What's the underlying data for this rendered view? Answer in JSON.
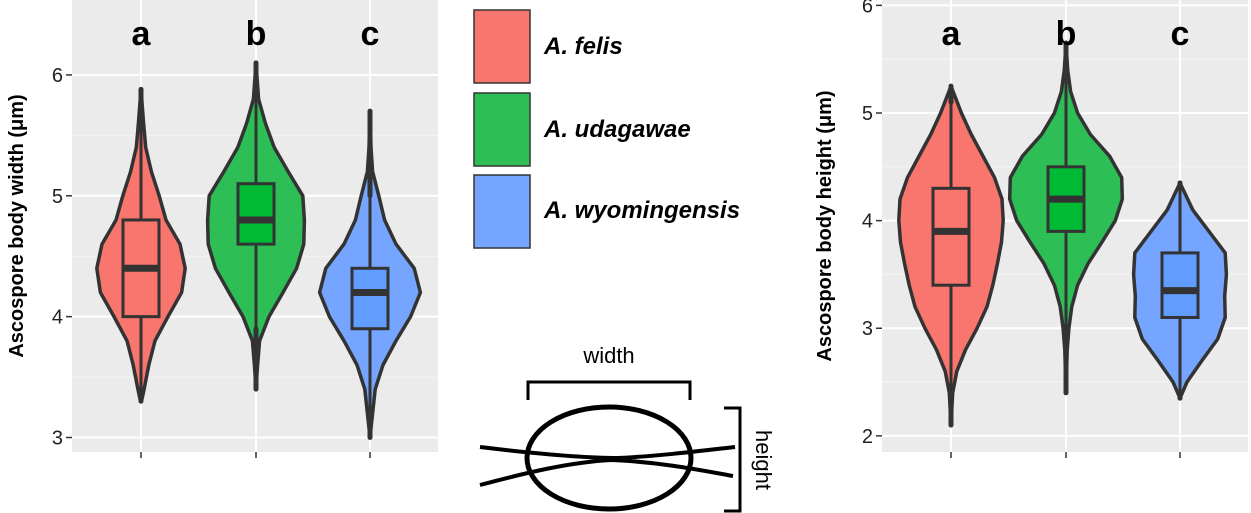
{
  "chart_data": [
    {
      "type": "violin",
      "ylabel": "Ascospore body width (μm)",
      "yticks": [
        3,
        4,
        5,
        6
      ],
      "ylim": [
        2.88,
        6.62
      ],
      "grid": true,
      "categories": [
        "A. felis",
        "A. udagawae",
        "A. wyomingensis"
      ],
      "significance_letters": [
        "a",
        "b",
        "c"
      ],
      "series": [
        {
          "name": "A. felis",
          "min": 3.3,
          "q1": 4.0,
          "median": 4.4,
          "q3": 4.8,
          "max": 5.88,
          "whisker_low": 3.3,
          "whisker_high": 5.8,
          "violin_profile": [
            [
              3.3,
              0.01
            ],
            [
              3.4,
              0.06
            ],
            [
              3.6,
              0.15
            ],
            [
              3.8,
              0.27
            ],
            [
              4.0,
              0.52
            ],
            [
              4.2,
              0.78
            ],
            [
              4.4,
              0.85
            ],
            [
              4.6,
              0.75
            ],
            [
              4.8,
              0.48
            ],
            [
              5.0,
              0.35
            ],
            [
              5.2,
              0.2
            ],
            [
              5.4,
              0.09
            ],
            [
              5.6,
              0.05
            ],
            [
              5.88,
              0.0
            ]
          ]
        },
        {
          "name": "A. udagawae",
          "min": 3.4,
          "q1": 4.6,
          "median": 4.8,
          "q3": 5.1,
          "max": 6.1,
          "whisker_low": 3.9,
          "whisker_high": 5.8,
          "violin_profile": [
            [
              3.4,
              0.0
            ],
            [
              3.6,
              0.03
            ],
            [
              3.8,
              0.07
            ],
            [
              4.0,
              0.25
            ],
            [
              4.2,
              0.52
            ],
            [
              4.4,
              0.78
            ],
            [
              4.6,
              0.92
            ],
            [
              4.8,
              0.93
            ],
            [
              5.0,
              0.9
            ],
            [
              5.2,
              0.62
            ],
            [
              5.4,
              0.35
            ],
            [
              5.6,
              0.18
            ],
            [
              5.8,
              0.05
            ],
            [
              6.1,
              0.0
            ]
          ]
        },
        {
          "name": "A. wyomingensis",
          "min": 3.0,
          "q1": 3.9,
          "median": 4.2,
          "q3": 4.4,
          "max": 5.7,
          "whisker_low": 3.2,
          "whisker_high": 5.0,
          "violin_profile": [
            [
              3.0,
              0.0
            ],
            [
              3.2,
              0.05
            ],
            [
              3.4,
              0.1
            ],
            [
              3.6,
              0.25
            ],
            [
              3.8,
              0.5
            ],
            [
              4.0,
              0.78
            ],
            [
              4.2,
              0.97
            ],
            [
              4.4,
              0.85
            ],
            [
              4.6,
              0.5
            ],
            [
              4.8,
              0.28
            ],
            [
              5.0,
              0.17
            ],
            [
              5.2,
              0.05
            ],
            [
              5.4,
              0.02
            ],
            [
              5.7,
              0.0
            ]
          ]
        }
      ]
    },
    {
      "type": "violin",
      "ylabel": "Ascospore body height (μm)",
      "yticks": [
        2,
        3,
        4,
        5,
        6
      ],
      "ylim": [
        1.85,
        6.05
      ],
      "grid": true,
      "categories": [
        "A. felis",
        "A. udagawae",
        "A. wyomingensis"
      ],
      "significance_letters": [
        "a",
        "b",
        "c"
      ],
      "series": [
        {
          "name": "A. felis",
          "min": 2.1,
          "q1": 3.4,
          "median": 3.9,
          "q3": 4.3,
          "max": 5.25,
          "whisker_low": 2.3,
          "whisker_high": 5.1,
          "violin_profile": [
            [
              2.1,
              0.0
            ],
            [
              2.4,
              0.03
            ],
            [
              2.6,
              0.1
            ],
            [
              2.8,
              0.25
            ],
            [
              3.0,
              0.45
            ],
            [
              3.2,
              0.62
            ],
            [
              3.4,
              0.72
            ],
            [
              3.6,
              0.8
            ],
            [
              3.8,
              0.87
            ],
            [
              4.0,
              0.9
            ],
            [
              4.2,
              0.88
            ],
            [
              4.4,
              0.75
            ],
            [
              4.6,
              0.55
            ],
            [
              4.8,
              0.35
            ],
            [
              5.0,
              0.18
            ],
            [
              5.25,
              0.0
            ]
          ]
        },
        {
          "name": "A. udagawae",
          "min": 2.4,
          "q1": 3.9,
          "median": 4.2,
          "q3": 4.5,
          "max": 5.65,
          "whisker_low": 3.0,
          "whisker_high": 5.4,
          "violin_profile": [
            [
              2.4,
              0.0
            ],
            [
              2.8,
              0.02
            ],
            [
              3.0,
              0.05
            ],
            [
              3.2,
              0.1
            ],
            [
              3.4,
              0.2
            ],
            [
              3.6,
              0.38
            ],
            [
              3.8,
              0.62
            ],
            [
              4.0,
              0.85
            ],
            [
              4.2,
              0.97
            ],
            [
              4.4,
              0.96
            ],
            [
              4.6,
              0.75
            ],
            [
              4.8,
              0.42
            ],
            [
              5.0,
              0.2
            ],
            [
              5.2,
              0.08
            ],
            [
              5.4,
              0.03
            ],
            [
              5.65,
              0.0
            ]
          ]
        },
        {
          "name": "A. wyomingensis",
          "min": 2.35,
          "q1": 3.1,
          "median": 3.35,
          "q3": 3.7,
          "max": 4.35,
          "whisker_low": 2.4,
          "whisker_high": 4.35,
          "violin_profile": [
            [
              2.35,
              0.0
            ],
            [
              2.5,
              0.12
            ],
            [
              2.7,
              0.38
            ],
            [
              2.9,
              0.65
            ],
            [
              3.1,
              0.78
            ],
            [
              3.3,
              0.77
            ],
            [
              3.5,
              0.8
            ],
            [
              3.7,
              0.78
            ],
            [
              3.9,
              0.5
            ],
            [
              4.1,
              0.22
            ],
            [
              4.35,
              0.0
            ]
          ]
        }
      ]
    }
  ],
  "legend": {
    "items": [
      {
        "label": "A. felis",
        "color": "#F8766D"
      },
      {
        "label": "A. udagawae",
        "color": "#2DBE56"
      },
      {
        "label": "A. wyomingensis",
        "color": "#75A5FF"
      }
    ]
  },
  "box_colors": [
    "#F8766D",
    "#00B935",
    "#619CFF"
  ],
  "diagram": {
    "width_label": "width",
    "height_label": "height"
  }
}
